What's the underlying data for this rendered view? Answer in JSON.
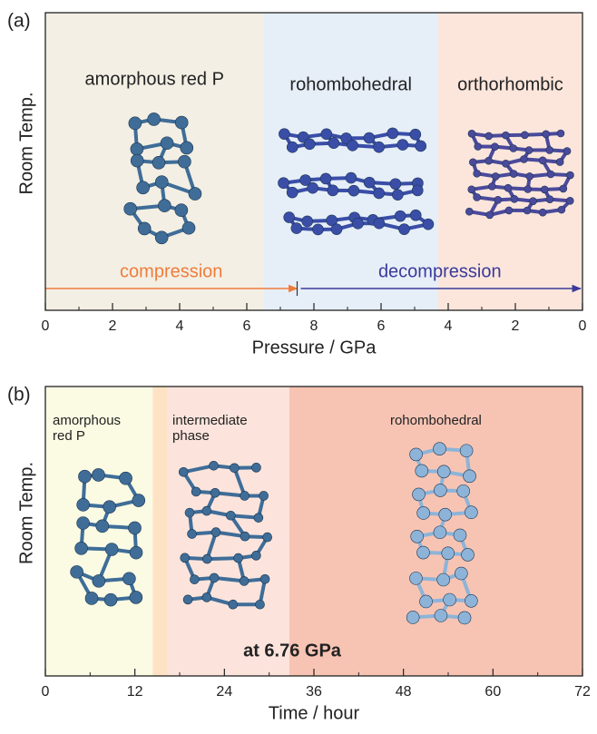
{
  "chart_data": [
    {
      "type": "phase",
      "panel": "(a)",
      "ylabel": "Room Temp.",
      "xlabel": "Pressure / GPa",
      "xlim": [
        0,
        16
      ],
      "xticks": [
        0,
        2,
        4,
        6,
        8,
        {
          "value": 10,
          "label": "6"
        },
        {
          "value": 12,
          "label": "4"
        },
        {
          "value": 14,
          "label": "2"
        },
        {
          "value": 16,
          "label": "0"
        }
      ],
      "regions": [
        {
          "label": [
            "amorphous red P"
          ],
          "from": 0,
          "to": 6.5,
          "color": "#f3efe4"
        },
        {
          "label": [
            "rohombohedral"
          ],
          "from": 6.5,
          "to": 11.7,
          "color": "#e6eef8"
        },
        {
          "label": [
            "orthorhombic"
          ],
          "from": 11.7,
          "to": 16,
          "color": "#fce6dc"
        }
      ],
      "arrows": [
        {
          "label": "compression",
          "from": 0,
          "to": 7.5,
          "color": "#f07c3c"
        },
        {
          "label": "decompression",
          "from": 7.5,
          "to": 16,
          "color": "#3a3a9a"
        }
      ]
    },
    {
      "type": "phase",
      "panel": "(b)",
      "ylabel": "Room Temp.",
      "xlabel": "Time / hour",
      "xlim": [
        0,
        72
      ],
      "xticks": [
        0,
        12,
        24,
        36,
        48,
        60,
        72
      ],
      "regions": [
        {
          "label": [
            "amorphous",
            "red P"
          ],
          "from": 0,
          "to": 14.4,
          "color": "#fbfbe4"
        },
        {
          "label": [],
          "from": 14.4,
          "to": 16.3,
          "color": "#fde3c4"
        },
        {
          "label": [
            "intermediate",
            "phase"
          ],
          "from": 16.3,
          "to": 32.7,
          "color": "#fce4dc"
        },
        {
          "label": [
            "rohombohedral"
          ],
          "from": 32.7,
          "to": 72,
          "color": "#f7c4b4"
        }
      ],
      "annotation": "at 6.76 GPa"
    }
  ]
}
